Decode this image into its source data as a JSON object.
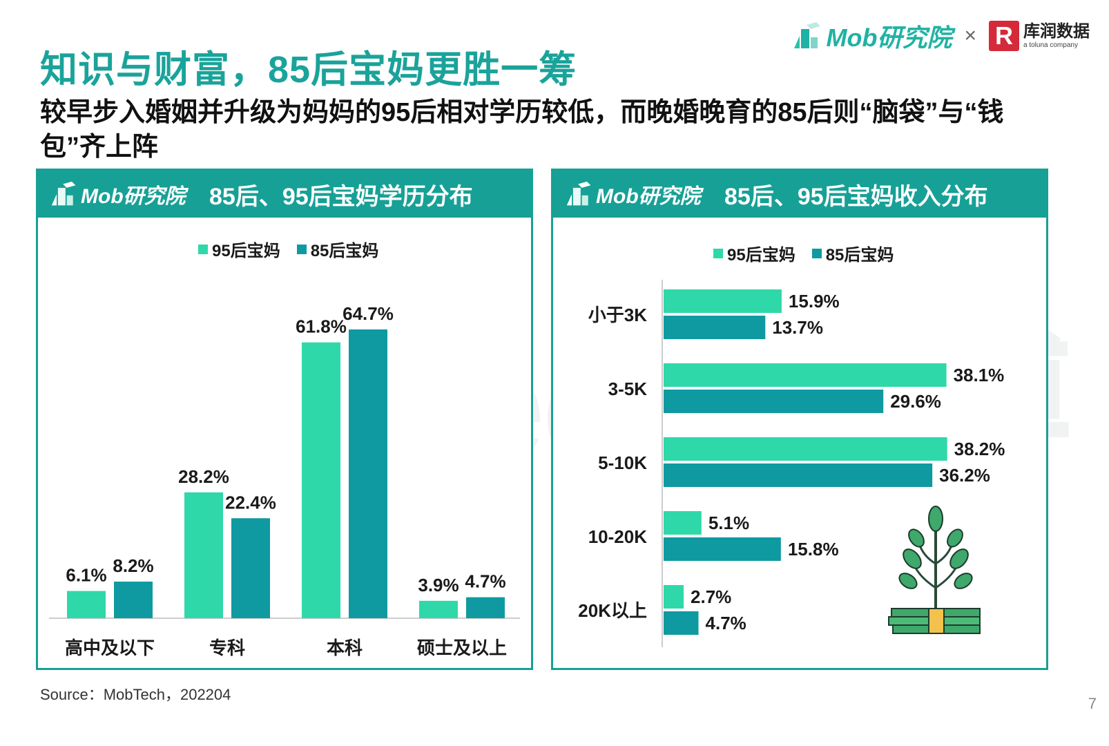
{
  "title": "知识与财富，85后宝妈更胜一筹",
  "subtitle": "较早步入婚姻并升级为妈妈的95后相对学历较低，而晚婚晚育的85后则“脑袋”与“钱包”齐上阵",
  "brand": {
    "mob": "Mob研究院",
    "times": "×",
    "rk_mark": "R",
    "rk_cn": "库润数据",
    "rk_en": "a toluna company"
  },
  "panel_logo": "Mob研究院",
  "watermark": "MobTech 袤博",
  "colors": {
    "series_95": "#2fd8a8",
    "series_85": "#0e9aa0",
    "teal": "#17a096"
  },
  "chart_data": [
    {
      "type": "bar",
      "title": "85后、95后宝妈学历分布",
      "categories": [
        "高中及以下",
        "专科",
        "本科",
        "硕士及以上"
      ],
      "series": [
        {
          "name": "95后宝妈",
          "values": [
            6.1,
            28.2,
            61.8,
            3.9
          ],
          "labels": [
            "6.1%",
            "28.2%",
            "61.8%",
            "3.9%"
          ]
        },
        {
          "name": "85后宝妈",
          "values": [
            8.2,
            22.4,
            64.7,
            4.7
          ],
          "labels": [
            "8.2%",
            "22.4%",
            "64.7%",
            "4.7%"
          ]
        }
      ],
      "legend": "top-center",
      "grid": false
    },
    {
      "type": "bar",
      "orientation": "horizontal",
      "title": "85后、95后宝妈收入分布",
      "categories": [
        "小于3K",
        "3-5K",
        "5-10K",
        "10-20K",
        "20K以上"
      ],
      "series": [
        {
          "name": "95后宝妈",
          "values": [
            15.9,
            38.1,
            38.2,
            5.1,
            2.7
          ],
          "labels": [
            "15.9%",
            "38.1%",
            "38.2%",
            "5.1%",
            "2.7%"
          ]
        },
        {
          "name": "85后宝妈",
          "values": [
            13.7,
            29.6,
            36.2,
            15.8,
            4.7
          ],
          "labels": [
            "13.7%",
            "29.6%",
            "36.2%",
            "15.8%",
            "4.7%"
          ]
        }
      ],
      "legend": "top-center",
      "grid": false
    }
  ],
  "source": "Source：MobTech，202204",
  "page_number": "7"
}
